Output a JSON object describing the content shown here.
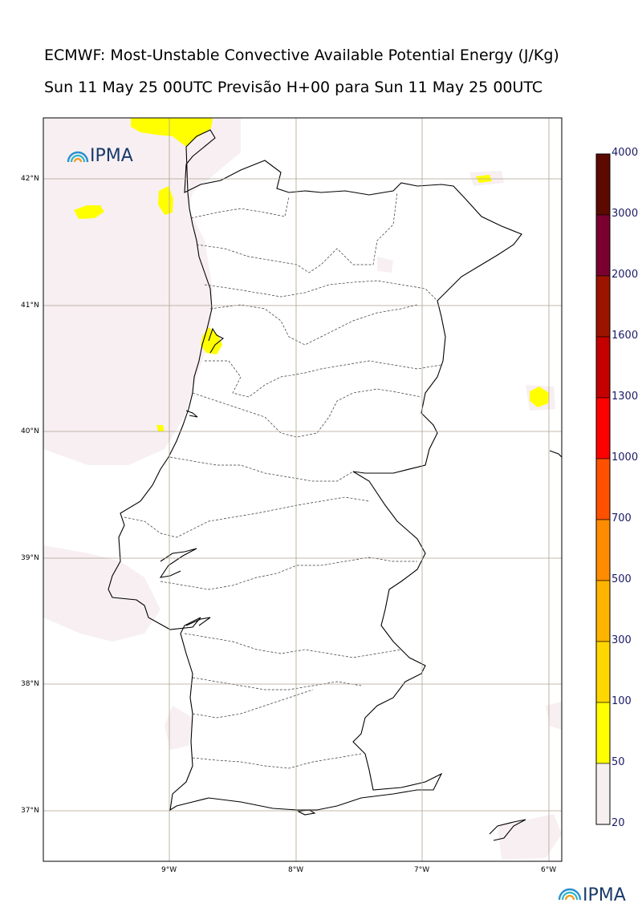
{
  "title_line1": "ECMWF: Most-Unstable Convective Available Potential Energy (J/Kg)",
  "title_line2": "Sun 11 May 25 00UTC Previsão H+00 para Sun 11 May 25 00UTC",
  "logo_text": "IPMA",
  "footer_logo_text": "IPMA",
  "colorbar": {
    "labels": [
      "4000",
      "3000",
      "2000",
      "1600",
      "1300",
      "1000",
      "700",
      "500",
      "300",
      "100",
      "50",
      "20"
    ],
    "colors": [
      "#5c0a00",
      "#7a0030",
      "#9c1400",
      "#c40000",
      "#ff0000",
      "#ff5000",
      "#ff8c00",
      "#ffb400",
      "#ffd700",
      "#ffff00",
      "#f7f0f0"
    ]
  },
  "axes": {
    "lat_labels": [
      "42°N",
      "41°N",
      "40°N",
      "39°N",
      "38°N",
      "37°N"
    ],
    "lon_labels": [
      "9°W",
      "8°W",
      "7°W",
      "6°W"
    ]
  }
}
